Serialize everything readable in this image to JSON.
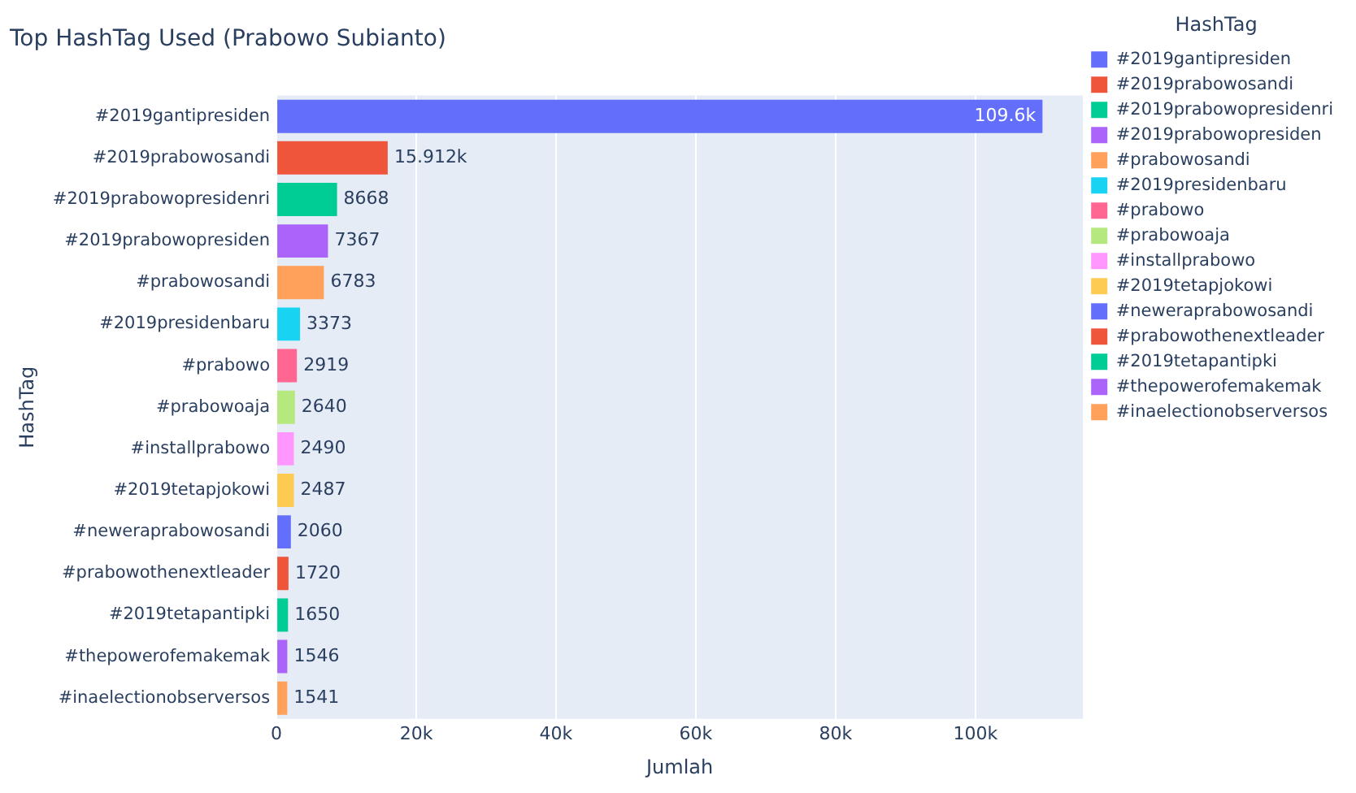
{
  "chart_data": {
    "type": "bar",
    "orientation": "horizontal",
    "title": "Top HashTag Used (Prabowo Subianto)",
    "xlabel": "Jumlah",
    "ylabel": "HashTag",
    "legend_title": "HashTag",
    "legend": "top right",
    "grid": "x",
    "categories": [
      "#2019gantipresiden",
      "#2019prabowosandi",
      "#2019prabowopresidenri",
      "#2019prabowopresiden",
      "#prabowosandi",
      "#2019presidenbaru",
      "#prabowo",
      "#prabowoaja",
      "#installprabowo",
      "#2019tetapjokowi",
      "#neweraprabowosandi",
      "#prabowothenextleader",
      "#2019tetapantipki",
      "#thepowerofemakemak",
      "#inaelectionobserversos"
    ],
    "series": [
      {
        "name": "#2019gantipresiden",
        "color": "#636efa",
        "values": [
          109600,
          null,
          null,
          null,
          null,
          null,
          null,
          null,
          null,
          null,
          null,
          null,
          null,
          null,
          null
        ],
        "value_labels": [
          "109.6k",
          null,
          null,
          null,
          null,
          null,
          null,
          null,
          null,
          null,
          null,
          null,
          null,
          null,
          null
        ]
      },
      {
        "name": "#2019prabowosandi",
        "color": "#ef553b",
        "values": [
          null,
          15912,
          null,
          null,
          null,
          null,
          null,
          null,
          null,
          null,
          null,
          null,
          null,
          null,
          null
        ],
        "value_labels": [
          null,
          "15.912k",
          null,
          null,
          null,
          null,
          null,
          null,
          null,
          null,
          null,
          null,
          null,
          null,
          null
        ]
      },
      {
        "name": "#2019prabowopresidenri",
        "color": "#00cc96",
        "values": [
          null,
          null,
          8668,
          null,
          null,
          null,
          null,
          null,
          null,
          null,
          null,
          null,
          null,
          null,
          null
        ],
        "value_labels": [
          null,
          null,
          "8668",
          null,
          null,
          null,
          null,
          null,
          null,
          null,
          null,
          null,
          null,
          null,
          null
        ]
      },
      {
        "name": "#2019prabowopresiden",
        "color": "#ab63fa",
        "values": [
          null,
          null,
          null,
          7367,
          null,
          null,
          null,
          null,
          null,
          null,
          null,
          null,
          null,
          null,
          null
        ],
        "value_labels": [
          null,
          null,
          null,
          "7367",
          null,
          null,
          null,
          null,
          null,
          null,
          null,
          null,
          null,
          null,
          null
        ]
      },
      {
        "name": "#prabowosandi",
        "color": "#ffa15a",
        "values": [
          null,
          null,
          null,
          null,
          6783,
          null,
          null,
          null,
          null,
          null,
          null,
          null,
          null,
          null,
          null
        ],
        "value_labels": [
          null,
          null,
          null,
          null,
          "6783",
          null,
          null,
          null,
          null,
          null,
          null,
          null,
          null,
          null,
          null
        ]
      },
      {
        "name": "#2019presidenbaru",
        "color": "#19d3f3",
        "values": [
          null,
          null,
          null,
          null,
          null,
          3373,
          null,
          null,
          null,
          null,
          null,
          null,
          null,
          null,
          null
        ],
        "value_labels": [
          null,
          null,
          null,
          null,
          null,
          "3373",
          null,
          null,
          null,
          null,
          null,
          null,
          null,
          null,
          null
        ]
      },
      {
        "name": "#prabowo",
        "color": "#ff6692",
        "values": [
          null,
          null,
          null,
          null,
          null,
          null,
          2919,
          null,
          null,
          null,
          null,
          null,
          null,
          null,
          null
        ],
        "value_labels": [
          null,
          null,
          null,
          null,
          null,
          null,
          "2919",
          null,
          null,
          null,
          null,
          null,
          null,
          null,
          null
        ]
      },
      {
        "name": "#prabowoaja",
        "color": "#b6e880",
        "values": [
          null,
          null,
          null,
          null,
          null,
          null,
          null,
          2640,
          null,
          null,
          null,
          null,
          null,
          null,
          null
        ],
        "value_labels": [
          null,
          null,
          null,
          null,
          null,
          null,
          null,
          "2640",
          null,
          null,
          null,
          null,
          null,
          null,
          null
        ]
      },
      {
        "name": "#installprabowo",
        "color": "#ff97ff",
        "values": [
          null,
          null,
          null,
          null,
          null,
          null,
          null,
          null,
          2490,
          null,
          null,
          null,
          null,
          null,
          null
        ],
        "value_labels": [
          null,
          null,
          null,
          null,
          null,
          null,
          null,
          null,
          "2490",
          null,
          null,
          null,
          null,
          null,
          null
        ]
      },
      {
        "name": "#2019tetapjokowi",
        "color": "#fecb52",
        "values": [
          null,
          null,
          null,
          null,
          null,
          null,
          null,
          null,
          null,
          2487,
          null,
          null,
          null,
          null,
          null
        ],
        "value_labels": [
          null,
          null,
          null,
          null,
          null,
          null,
          null,
          null,
          null,
          "2487",
          null,
          null,
          null,
          null,
          null
        ]
      },
      {
        "name": "#neweraprabowosandi",
        "color": "#636efa",
        "values": [
          null,
          null,
          null,
          null,
          null,
          null,
          null,
          null,
          null,
          null,
          2060,
          null,
          null,
          null,
          null
        ],
        "value_labels": [
          null,
          null,
          null,
          null,
          null,
          null,
          null,
          null,
          null,
          null,
          "2060",
          null,
          null,
          null,
          null
        ]
      },
      {
        "name": "#prabowothenextleader",
        "color": "#ef553b",
        "values": [
          null,
          null,
          null,
          null,
          null,
          null,
          null,
          null,
          null,
          null,
          null,
          1720,
          null,
          null,
          null
        ],
        "value_labels": [
          null,
          null,
          null,
          null,
          null,
          null,
          null,
          null,
          null,
          null,
          null,
          "1720",
          null,
          null,
          null
        ]
      },
      {
        "name": "#2019tetapantipki",
        "color": "#00cc96",
        "values": [
          null,
          null,
          null,
          null,
          null,
          null,
          null,
          null,
          null,
          null,
          null,
          null,
          1650,
          null,
          null
        ],
        "value_labels": [
          null,
          null,
          null,
          null,
          null,
          null,
          null,
          null,
          null,
          null,
          null,
          null,
          "1650",
          null,
          null
        ]
      },
      {
        "name": "#thepowerofemakemak",
        "color": "#ab63fa",
        "values": [
          null,
          null,
          null,
          null,
          null,
          null,
          null,
          null,
          null,
          null,
          null,
          null,
          null,
          1546,
          null
        ],
        "value_labels": [
          null,
          null,
          null,
          null,
          null,
          null,
          null,
          null,
          null,
          null,
          null,
          null,
          null,
          "1546",
          null
        ]
      },
      {
        "name": "#inaelectionobserversos",
        "color": "#ffa15a",
        "values": [
          null,
          null,
          null,
          null,
          null,
          null,
          null,
          null,
          null,
          null,
          null,
          null,
          null,
          null,
          1541
        ],
        "value_labels": [
          null,
          null,
          null,
          null,
          null,
          null,
          null,
          null,
          null,
          null,
          null,
          null,
          null,
          null,
          "1541"
        ]
      }
    ],
    "xlim": [
      0,
      115400
    ],
    "xticks": [
      0,
      {
        "value": 20000,
        "label": "20k"
      },
      {
        "value": 40000,
        "label": "40k"
      },
      {
        "value": 60000,
        "label": "60k"
      },
      {
        "value": 80000,
        "label": "80k"
      },
      {
        "value": 100000,
        "label": "100k"
      }
    ]
  }
}
